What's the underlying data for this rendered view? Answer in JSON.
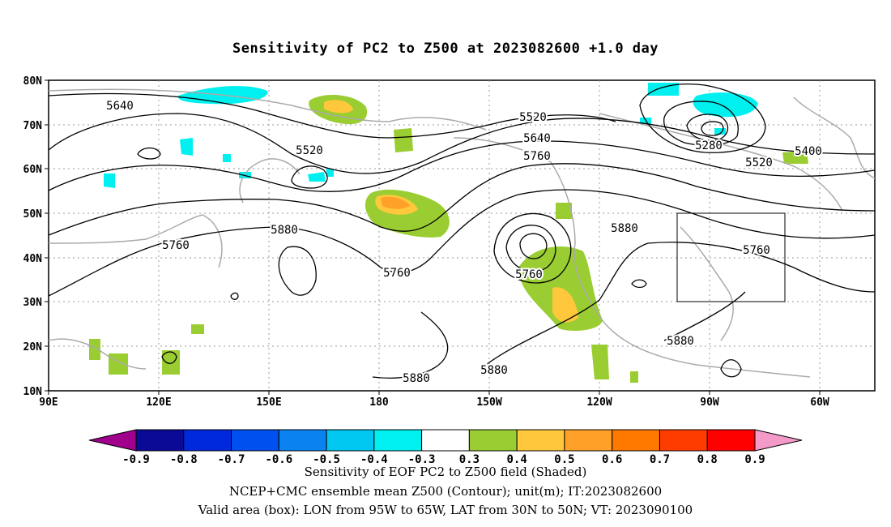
{
  "title": "Sensitivity of PC2 to Z500 at 2023082600 +1.0 day",
  "lat_ticks": [
    "80N",
    "70N",
    "60N",
    "50N",
    "40N",
    "30N",
    "20N",
    "10N"
  ],
  "lon_ticks": [
    "90E",
    "120E",
    "150E",
    "180",
    "150W",
    "120W",
    "90W",
    "60W"
  ],
  "contour_labels": [
    {
      "text": "5640",
      "name": "contour-label-5640-west"
    },
    {
      "text": "5520",
      "name": "contour-label-5520-kamchatka"
    },
    {
      "text": "5520",
      "name": "contour-label-5520-alaska"
    },
    {
      "text": "5640",
      "name": "contour-label-5640-alaska"
    },
    {
      "text": "5760",
      "name": "contour-label-5760-alaska"
    },
    {
      "text": "5280",
      "name": "contour-label-5280-hudson"
    },
    {
      "text": "5400",
      "name": "contour-label-5400-labrador"
    },
    {
      "text": "5520",
      "name": "contour-label-5520-labrador"
    },
    {
      "text": "5880",
      "name": "contour-label-5880-canada"
    },
    {
      "text": "5760",
      "name": "contour-label-5760-eastus"
    },
    {
      "text": "5880",
      "name": "contour-label-5880-pacific"
    },
    {
      "text": "5760",
      "name": "contour-label-5760-japan"
    },
    {
      "text": "5760",
      "name": "contour-label-5760-dateline"
    },
    {
      "text": "5760",
      "name": "contour-label-5760-low"
    },
    {
      "text": "5880",
      "name": "contour-label-5880-gulf"
    },
    {
      "text": "5880",
      "name": "contour-label-5880-south"
    },
    {
      "text": "5880",
      "name": "contour-label-5880-subtropic"
    }
  ],
  "colorbar": {
    "colors": [
      "#a0008c",
      "#0a0a96",
      "#0028dc",
      "#0050f0",
      "#0a82f0",
      "#00c8f0",
      "#00f0f0",
      "#ffffff",
      "#9acd32",
      "#ffc83c",
      "#ffa028",
      "#ff7800",
      "#ff3c00",
      "#ff0000",
      "#f49ac8"
    ],
    "labels": [
      "-0.9",
      "-0.8",
      "-0.7",
      "-0.6",
      "-0.5",
      "-0.4",
      "-0.3",
      "0.3",
      "0.4",
      "0.5",
      "0.6",
      "0.7",
      "0.8",
      "0.9"
    ]
  },
  "captions": {
    "line1": "Sensitivity of EOF PC2 to Z500 field (Shaded)",
    "line2": "NCEP+CMC ensemble mean Z500 (Contour); unit(m); IT:2023082600",
    "line3": "Valid area (box): LON from 95W to 65W, LAT from 30N to 50N; VT: 2023090100"
  },
  "valid_box": {
    "lon_min": -95,
    "lon_max": -65,
    "lat_min": 30,
    "lat_max": 50
  }
}
